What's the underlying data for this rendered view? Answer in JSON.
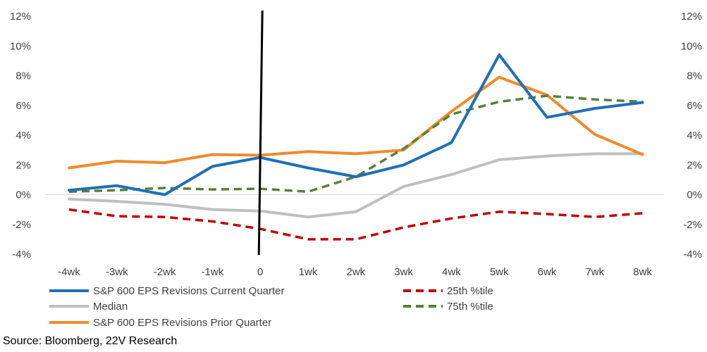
{
  "chart_data": {
    "type": "line",
    "categories": [
      "-4wk",
      "-3wk",
      "-2wk",
      "-1wk",
      "0",
      "1wk",
      "2wk",
      "3wk",
      "4wk",
      "5wk",
      "6wk",
      "7wk",
      "8wk"
    ],
    "ylim": [
      -4,
      12
    ],
    "yticks": [
      -4,
      -2,
      0,
      2,
      4,
      6,
      8,
      10,
      12
    ],
    "ytick_labels": [
      "-4%",
      "-2%",
      "0%",
      "2%",
      "4%",
      "6%",
      "8%",
      "10%",
      "12%"
    ],
    "y_axes": "left and right (mirrored)",
    "grid": false,
    "zero_line": true,
    "event_marker_category": "0",
    "legend_position": "bottom",
    "series": [
      {
        "name": "S&P 600 EPS Revisions Current Quarter",
        "color": "#1f6fb5",
        "style": "solid",
        "values": [
          0.3,
          0.6,
          0.0,
          1.9,
          2.5,
          1.8,
          1.2,
          2.0,
          3.5,
          9.4,
          5.2,
          5.8,
          6.2
        ]
      },
      {
        "name": "Median",
        "color": "#bfbfbf",
        "style": "solid",
        "values": [
          -0.3,
          -0.45,
          -0.65,
          -1.0,
          -1.1,
          -1.5,
          -1.15,
          0.55,
          1.35,
          2.35,
          2.6,
          2.75,
          2.75
        ]
      },
      {
        "name": "S&P 600 EPS Revisions Prior Quarter",
        "color": "#f08a2c",
        "style": "solid",
        "values": [
          1.8,
          2.25,
          2.15,
          2.7,
          2.65,
          2.9,
          2.75,
          3.0,
          5.6,
          7.9,
          6.7,
          4.05,
          2.7
        ]
      },
      {
        "name": "25th %tile",
        "color": "#c00000",
        "style": "dashed",
        "values": [
          -1.0,
          -1.45,
          -1.5,
          -1.8,
          -2.3,
          -3.0,
          -3.0,
          -2.2,
          -1.6,
          -1.15,
          -1.3,
          -1.5,
          -1.25
        ]
      },
      {
        "name": "75th %tile",
        "color": "#548235",
        "style": "dashed",
        "values": [
          0.2,
          0.3,
          0.45,
          0.35,
          0.4,
          0.2,
          1.2,
          3.1,
          5.4,
          6.25,
          6.65,
          6.4,
          6.25
        ]
      }
    ]
  },
  "source_text": "Source: Bloomberg, 22V Research"
}
